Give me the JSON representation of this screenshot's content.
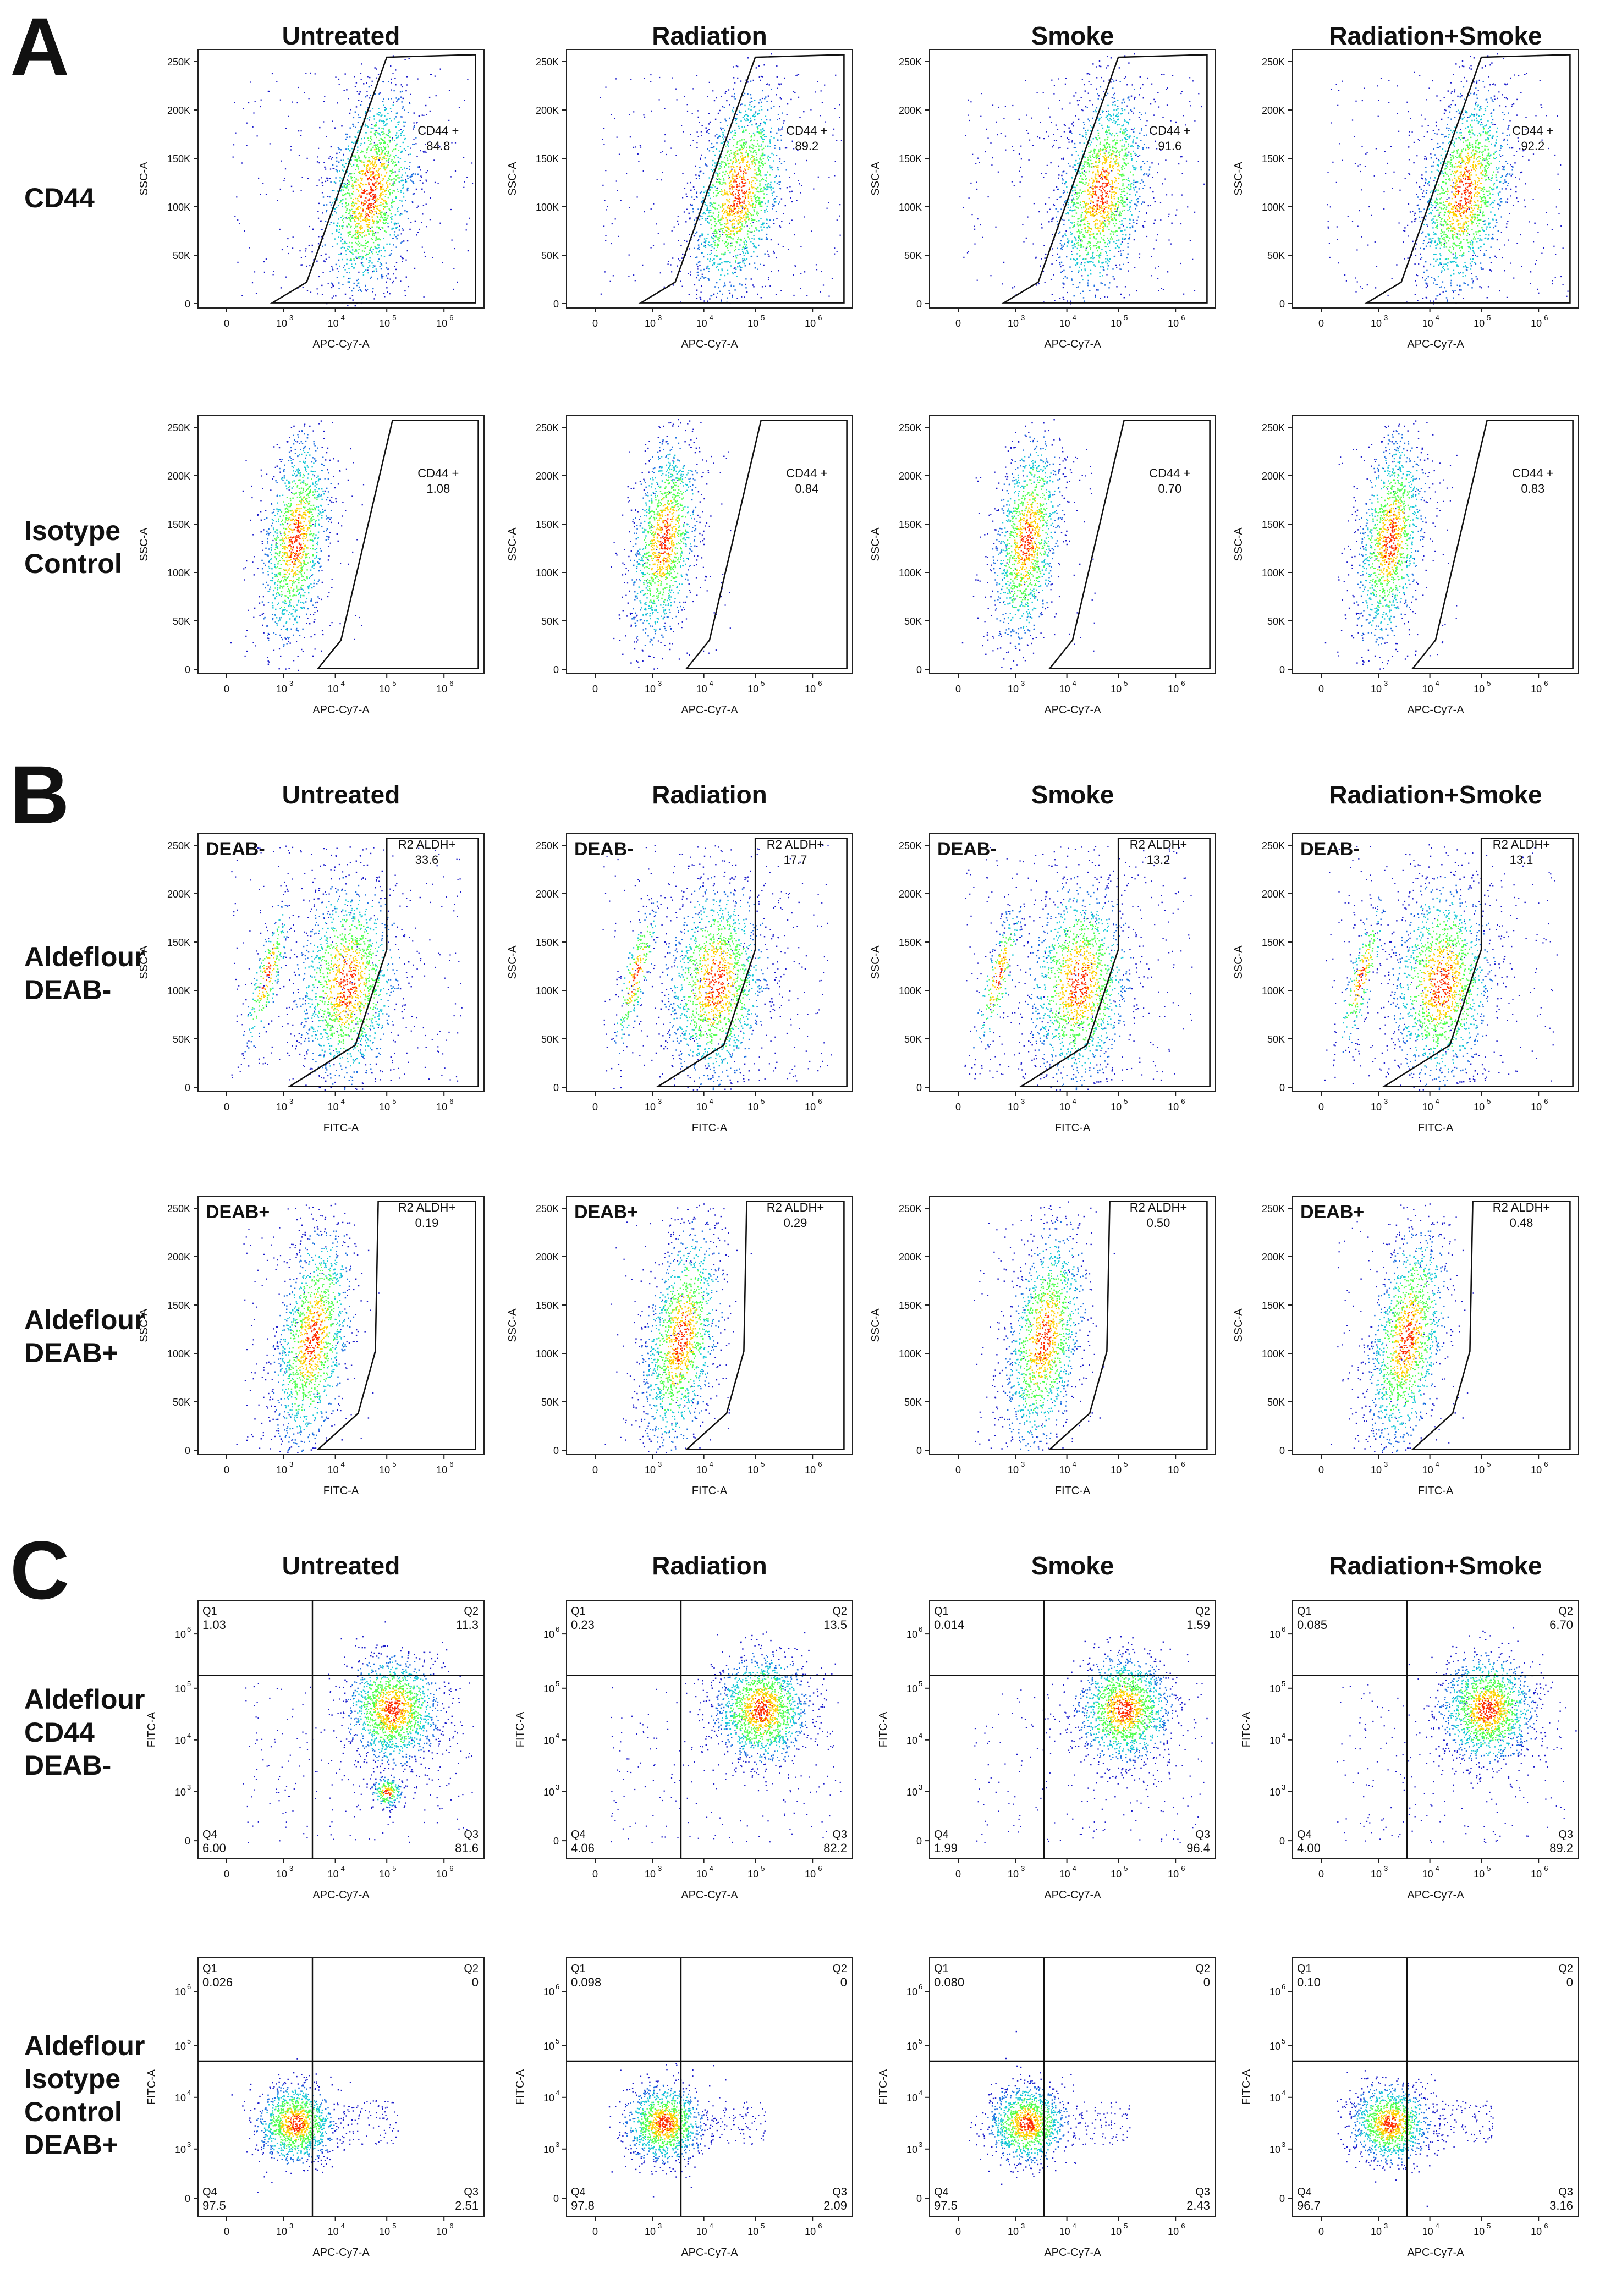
{
  "sections": [
    {
      "letter": "A",
      "columns": [
        "Untreated",
        "Radiation",
        "Smoke",
        "Radiation+Smoke"
      ],
      "rows": [
        "CD44",
        "Isotype Control"
      ]
    },
    {
      "letter": "B",
      "columns": [
        "Untreated",
        "Radiation",
        "Smoke",
        "Radiation+Smoke"
      ],
      "rows": [
        "Aldeflour DEAB-",
        "Aldeflour DEAB+"
      ]
    },
    {
      "letter": "C",
      "columns": [
        "Untreated",
        "Radiation",
        "Smoke",
        "Radiation+Smoke"
      ],
      "rows": [
        "Aldeflour CD44 DEAB-",
        "Aldeflour Isotype Control DEAB+"
      ]
    }
  ],
  "chart_data": [
    {
      "type": "scatter",
      "panel": "A-CD44-Untreated",
      "x_label": "APC-Cy7-A",
      "y_label": "SSC-A",
      "gate": {
        "label": "CD44 +",
        "value": "84.8"
      }
    },
    {
      "type": "scatter",
      "panel": "A-CD44-Radiation",
      "x_label": "APC-Cy7-A",
      "y_label": "SSC-A",
      "gate": {
        "label": "CD44 +",
        "value": "89.2"
      }
    },
    {
      "type": "scatter",
      "panel": "A-CD44-Smoke",
      "x_label": "APC-Cy7-A",
      "y_label": "SSC-A",
      "gate": {
        "label": "CD44 +",
        "value": "91.6"
      }
    },
    {
      "type": "scatter",
      "panel": "A-CD44-Radiation+Smoke",
      "x_label": "APC-Cy7-A",
      "y_label": "SSC-A",
      "gate": {
        "label": "CD44 +",
        "value": "92.2"
      }
    },
    {
      "type": "scatter",
      "panel": "A-Isotype-Untreated",
      "x_label": "APC-Cy7-A",
      "y_label": "SSC-A",
      "gate": {
        "label": "CD44 +",
        "value": "1.08"
      }
    },
    {
      "type": "scatter",
      "panel": "A-Isotype-Radiation",
      "x_label": "APC-Cy7-A",
      "y_label": "SSC-A",
      "gate": {
        "label": "CD44 +",
        "value": "0.84"
      }
    },
    {
      "type": "scatter",
      "panel": "A-Isotype-Smoke",
      "x_label": "APC-Cy7-A",
      "y_label": "SSC-A",
      "gate": {
        "label": "CD44 +",
        "value": "0.70"
      }
    },
    {
      "type": "scatter",
      "panel": "A-Isotype-Radiation+Smoke",
      "x_label": "APC-Cy7-A",
      "y_label": "SSC-A",
      "gate": {
        "label": "CD44 +",
        "value": "0.83"
      }
    },
    {
      "type": "scatter",
      "panel": "B-DEABneg-Untreated",
      "x_label": "FITC-A",
      "y_label": "SSC-A",
      "tag": "DEAB-",
      "gate": {
        "label": "R2 ALDH+",
        "value": "33.6"
      }
    },
    {
      "type": "scatter",
      "panel": "B-DEABneg-Radiation",
      "x_label": "FITC-A",
      "y_label": "SSC-A",
      "tag": "DEAB-",
      "gate": {
        "label": "R2 ALDH+",
        "value": "17.7"
      }
    },
    {
      "type": "scatter",
      "panel": "B-DEABneg-Smoke",
      "x_label": "FITC-A",
      "y_label": "SSC-A",
      "tag": "DEAB-",
      "gate": {
        "label": "R2 ALDH+",
        "value": "13.2"
      }
    },
    {
      "type": "scatter",
      "panel": "B-DEABneg-Radiation+Smoke",
      "x_label": "FITC-A",
      "y_label": "SSC-A",
      "tag": "DEAB-",
      "gate": {
        "label": "R2 ALDH+",
        "value": "13.1"
      }
    },
    {
      "type": "scatter",
      "panel": "B-DEABpos-Untreated",
      "x_label": "FITC-A",
      "y_label": "SSC-A",
      "tag": "DEAB+",
      "gate": {
        "label": "R2 ALDH+",
        "value": "0.19"
      }
    },
    {
      "type": "scatter",
      "panel": "B-DEABpos-Radiation",
      "x_label": "FITC-A",
      "y_label": "SSC-A",
      "tag": "DEAB+",
      "gate": {
        "label": "R2 ALDH+",
        "value": "0.29"
      }
    },
    {
      "type": "scatter",
      "panel": "B-DEABpos-Smoke",
      "x_label": "FITC-A",
      "y_label": "SSC-A",
      "tag": "",
      "gate": {
        "label": "R2 ALDH+",
        "value": "0.50"
      }
    },
    {
      "type": "scatter",
      "panel": "B-DEABpos-Radiation+Smoke",
      "x_label": "FITC-A",
      "y_label": "SSC-A",
      "tag": "DEAB+",
      "gate": {
        "label": "R2 ALDH+",
        "value": "0.48"
      }
    },
    {
      "type": "scatter",
      "panel": "C-CD44-Untreated",
      "x_label": "APC-Cy7-A",
      "y_label": "FITC-A",
      "quadrants": {
        "Q1": "1.03",
        "Q2": "11.3",
        "Q3": "81.6",
        "Q4": "6.00"
      }
    },
    {
      "type": "scatter",
      "panel": "C-CD44-Radiation",
      "x_label": "APC-Cy7-A",
      "y_label": "FITC-A",
      "quadrants": {
        "Q1": "0.23",
        "Q2": "13.5",
        "Q3": "82.2",
        "Q4": "4.06"
      }
    },
    {
      "type": "scatter",
      "panel": "C-CD44-Smoke",
      "x_label": "APC-Cy7-A",
      "y_label": "FITC-A",
      "quadrants": {
        "Q1": "0.014",
        "Q2": "1.59",
        "Q3": "96.4",
        "Q4": "1.99"
      }
    },
    {
      "type": "scatter",
      "panel": "C-CD44-Radiation+Smoke",
      "x_label": "APC-Cy7-A",
      "y_label": "FITC-A",
      "quadrants": {
        "Q1": "0.085",
        "Q2": "6.70",
        "Q3": "89.2",
        "Q4": "4.00"
      }
    },
    {
      "type": "scatter",
      "panel": "C-Isotype-Untreated",
      "x_label": "APC-Cy7-A",
      "y_label": "FITC-A",
      "quadrants": {
        "Q1": "0.026",
        "Q2": "0",
        "Q3": "2.51",
        "Q4": "97.5"
      }
    },
    {
      "type": "scatter",
      "panel": "C-Isotype-Radiation",
      "x_label": "APC-Cy7-A",
      "y_label": "FITC-A",
      "quadrants": {
        "Q1": "0.098",
        "Q2": "0",
        "Q3": "2.09",
        "Q4": "97.8"
      }
    },
    {
      "type": "scatter",
      "panel": "C-Isotype-Smoke",
      "x_label": "APC-Cy7-A",
      "y_label": "FITC-A",
      "quadrants": {
        "Q1": "0.080",
        "Q2": "0",
        "Q3": "2.43",
        "Q4": "97.5"
      }
    },
    {
      "type": "scatter",
      "panel": "C-Isotype-Radiation+Smoke",
      "x_label": "APC-Cy7-A",
      "y_label": "FITC-A",
      "quadrants": {
        "Q1": "0.10",
        "Q2": "0",
        "Q3": "3.16",
        "Q4": "96.7"
      }
    }
  ],
  "axis": {
    "ssc_ticks": [
      "0",
      "50K",
      "100K",
      "150K",
      "200K",
      "250K"
    ],
    "log_ticks": [
      "0",
      "10",
      "10",
      "10",
      "10"
    ],
    "log_exps": [
      "3",
      "4",
      "5",
      "6"
    ]
  }
}
